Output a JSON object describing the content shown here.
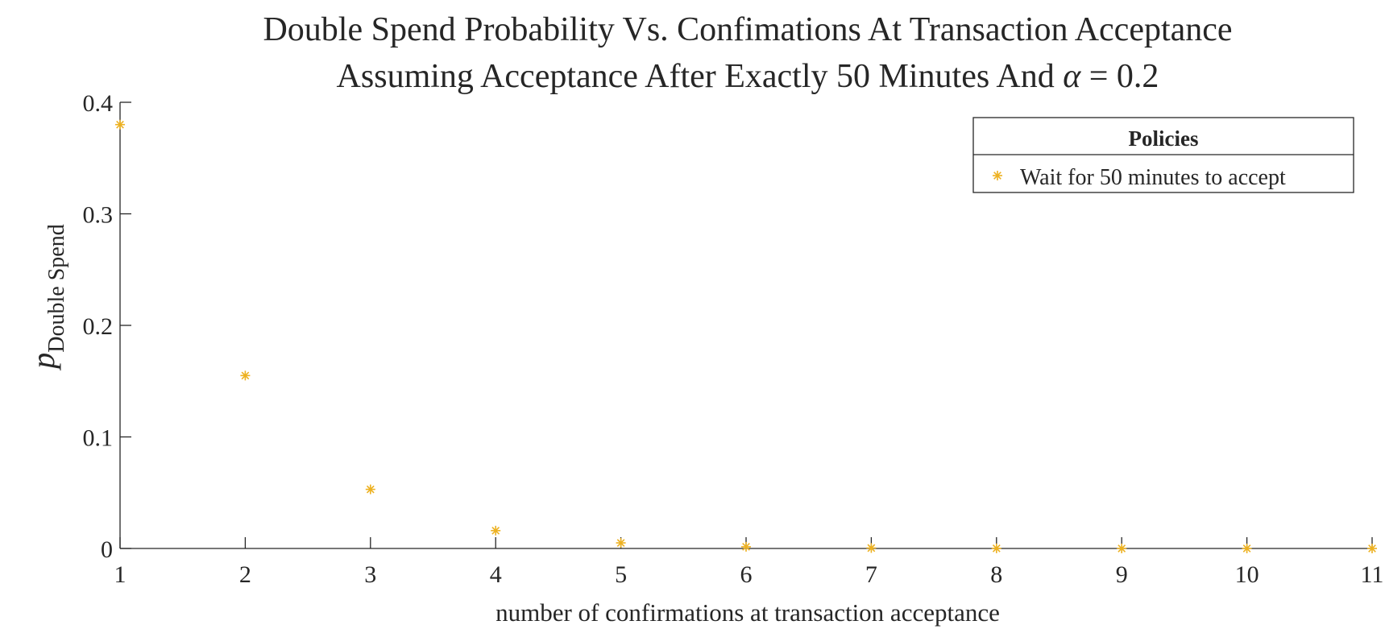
{
  "chart_data": {
    "type": "scatter",
    "title_line1": "Double Spend Probability Vs. Confimations At Transaction Acceptance",
    "title_line2_prefix": "Assuming Acceptance After Exactly 50 Minutes And ",
    "title_line2_alpha": "α",
    "title_line2_suffix": " = 0.2",
    "xlabel": "number of confirmations at transaction acceptance",
    "ylabel_main": "p",
    "ylabel_sub": "Double Spend",
    "xlim": [
      1,
      11
    ],
    "ylim": [
      0,
      0.4
    ],
    "xticks": [
      "1",
      "2",
      "3",
      "4",
      "5",
      "6",
      "7",
      "8",
      "9",
      "10",
      "11"
    ],
    "yticks": [
      "0",
      "0.1",
      "0.2",
      "0.3",
      "0.4"
    ],
    "legend": {
      "title": "Policies",
      "placement": "top-right",
      "entries": [
        "Wait for 50 minutes to accept"
      ]
    },
    "series": [
      {
        "name": "Wait for 50 minutes to accept",
        "color": "#EDB120",
        "marker": "*",
        "x": [
          1,
          2,
          3,
          4,
          5,
          6,
          7,
          8,
          9,
          10,
          11
        ],
        "y": [
          0.38,
          0.155,
          0.053,
          0.016,
          0.005,
          0.0015,
          0.0004,
          0.0001,
          3e-05,
          1e-05,
          0.0
        ]
      }
    ]
  }
}
